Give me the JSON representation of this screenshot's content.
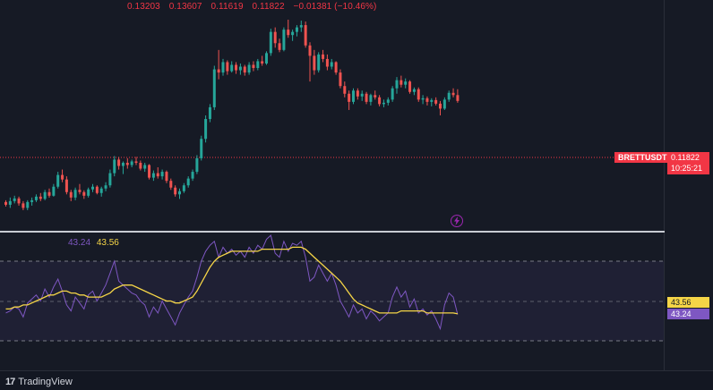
{
  "ohlc": {
    "open": "0.13203",
    "high": "0.13607",
    "low": "0.11619",
    "close": "0.11822",
    "change": "−0.01381 (−10.46%)"
  },
  "rsi_legend": {
    "rsi": "43.24",
    "ma": "43.56"
  },
  "symbol_tag": "BRETTUSDT",
  "last_price": "0.11822",
  "countdown": "10:25:21",
  "rsi_axis": {
    "ma_value": "43.56",
    "rsi_value": "43.24"
  },
  "footer": {
    "logo_mark": "17",
    "logo_text": "TradingView"
  },
  "colors": {
    "up": "#26a69a",
    "down": "#ef5350",
    "rsi": "#7e57c2",
    "rsi_ma": "#f5d547",
    "background": "#161a25",
    "rsi_band": "#1e1f33"
  },
  "icons": {
    "flash": "flash-circle-icon",
    "logo": "tradingview-logo-icon"
  },
  "chart_data": [
    {
      "type": "candlestick",
      "symbol": "BRETTUSDT",
      "last": 0.11822,
      "candles": [
        [
          0.0958,
          0.0962,
          0.0948,
          0.0952
        ],
        [
          0.0952,
          0.0968,
          0.0945,
          0.096
        ],
        [
          0.096,
          0.0972,
          0.0955,
          0.0966
        ],
        [
          0.0966,
          0.097,
          0.095,
          0.0955
        ],
        [
          0.0955,
          0.096,
          0.094,
          0.0945
        ],
        [
          0.0945,
          0.0962,
          0.094,
          0.0958
        ],
        [
          0.0958,
          0.0968,
          0.095,
          0.0962
        ],
        [
          0.0962,
          0.0975,
          0.0958,
          0.097
        ],
        [
          0.097,
          0.0978,
          0.096,
          0.0965
        ],
        [
          0.0965,
          0.0985,
          0.0962,
          0.098
        ],
        [
          0.098,
          0.0988,
          0.0968,
          0.0972
        ],
        [
          0.0972,
          0.0998,
          0.097,
          0.0992
        ],
        [
          0.0992,
          0.1025,
          0.0988,
          0.1018
        ],
        [
          0.1018,
          0.103,
          0.1002,
          0.1008
        ],
        [
          0.1008,
          0.1015,
          0.0975,
          0.098
        ],
        [
          0.098,
          0.0985,
          0.096,
          0.0968
        ],
        [
          0.0968,
          0.099,
          0.0962,
          0.0985
        ],
        [
          0.0985,
          0.0998,
          0.0975,
          0.098
        ],
        [
          0.098,
          0.0984,
          0.0965,
          0.0972
        ],
        [
          0.0972,
          0.099,
          0.0968,
          0.0986
        ],
        [
          0.0986,
          0.0998,
          0.098,
          0.0992
        ],
        [
          0.0992,
          0.0995,
          0.0975,
          0.0978
        ],
        [
          0.0978,
          0.0992,
          0.097,
          0.0988
        ],
        [
          0.0988,
          0.1002,
          0.0982,
          0.0995
        ],
        [
          0.0995,
          0.103,
          0.099,
          0.1022
        ],
        [
          0.1022,
          0.106,
          0.1015,
          0.1052
        ],
        [
          0.1052,
          0.1058,
          0.103,
          0.1038
        ],
        [
          0.1038,
          0.1048,
          0.102,
          0.1045
        ],
        [
          0.1045,
          0.1055,
          0.1032,
          0.104
        ],
        [
          0.104,
          0.1052,
          0.1035,
          0.1048
        ],
        [
          0.1048,
          0.1058,
          0.104,
          0.1045
        ],
        [
          0.1045,
          0.105,
          0.1028,
          0.1032
        ],
        [
          0.1032,
          0.1045,
          0.1025,
          0.104
        ],
        [
          0.104,
          0.1042,
          0.1008,
          0.1012
        ],
        [
          0.1012,
          0.1028,
          0.1005,
          0.1022
        ],
        [
          0.1022,
          0.1035,
          0.101,
          0.1015
        ],
        [
          0.1015,
          0.103,
          0.1008,
          0.1025
        ],
        [
          0.1025,
          0.1028,
          0.1,
          0.1005
        ],
        [
          0.1005,
          0.101,
          0.0985,
          0.099
        ],
        [
          0.099,
          0.0995,
          0.097,
          0.0975
        ],
        [
          0.0975,
          0.0988,
          0.0965,
          0.0982
        ],
        [
          0.0982,
          0.1,
          0.0978,
          0.0995
        ],
        [
          0.0995,
          0.1015,
          0.099,
          0.101
        ],
        [
          0.101,
          0.103,
          0.1005,
          0.1025
        ],
        [
          0.1025,
          0.1062,
          0.102,
          0.1055
        ],
        [
          0.1055,
          0.1105,
          0.105,
          0.1098
        ],
        [
          0.1098,
          0.115,
          0.109,
          0.1142
        ],
        [
          0.1142,
          0.1175,
          0.1135,
          0.1168
        ],
        [
          0.1168,
          0.126,
          0.1162,
          0.1252
        ],
        [
          0.1252,
          0.1295,
          0.123,
          0.1245
        ],
        [
          0.1245,
          0.1275,
          0.1238,
          0.1268
        ],
        [
          0.1268,
          0.1272,
          0.124,
          0.1248
        ],
        [
          0.1248,
          0.127,
          0.1245,
          0.1262
        ],
        [
          0.1262,
          0.1268,
          0.1242,
          0.125
        ],
        [
          0.125,
          0.1265,
          0.124,
          0.1258
        ],
        [
          0.1258,
          0.1262,
          0.1238,
          0.1245
        ],
        [
          0.1245,
          0.1268,
          0.124,
          0.1262
        ],
        [
          0.1262,
          0.127,
          0.1248,
          0.1255
        ],
        [
          0.1255,
          0.1275,
          0.125,
          0.127
        ],
        [
          0.127,
          0.1282,
          0.126,
          0.1265
        ],
        [
          0.1265,
          0.1292,
          0.1262,
          0.1288
        ],
        [
          0.1288,
          0.1342,
          0.1282,
          0.1335
        ],
        [
          0.1335,
          0.1345,
          0.13,
          0.131
        ],
        [
          0.131,
          0.132,
          0.129,
          0.1295
        ],
        [
          0.1295,
          0.1345,
          0.1292,
          0.134
        ],
        [
          0.134,
          0.1362,
          0.1322,
          0.1328
        ],
        [
          0.1328,
          0.134,
          0.1315,
          0.1335
        ],
        [
          0.1335,
          0.135,
          0.1325,
          0.1345
        ],
        [
          0.1345,
          0.136,
          0.1335,
          0.135
        ],
        [
          0.135,
          0.1358,
          0.13,
          0.1305
        ],
        [
          0.1305,
          0.1312,
          0.1225,
          0.1282
        ],
        [
          0.1282,
          0.1295,
          0.124,
          0.125
        ],
        [
          0.125,
          0.129,
          0.1245,
          0.1285
        ],
        [
          0.1285,
          0.1295,
          0.1268,
          0.1275
        ],
        [
          0.1275,
          0.1285,
          0.125,
          0.1258
        ],
        [
          0.1258,
          0.1275,
          0.1252,
          0.1268
        ],
        [
          0.1268,
          0.127,
          0.124,
          0.1245
        ],
        [
          0.1245,
          0.1252,
          0.121,
          0.1215
        ],
        [
          0.1215,
          0.1225,
          0.119,
          0.1198
        ],
        [
          0.1198,
          0.1205,
          0.1162,
          0.118
        ],
        [
          0.118,
          0.121,
          0.1175,
          0.1205
        ],
        [
          0.1205,
          0.121,
          0.1185,
          0.1192
        ],
        [
          0.1192,
          0.1205,
          0.1182,
          0.1198
        ],
        [
          0.1198,
          0.1202,
          0.1175,
          0.118
        ],
        [
          0.118,
          0.1198,
          0.1172,
          0.1195
        ],
        [
          0.1195,
          0.1205,
          0.1185,
          0.119
        ],
        [
          0.119,
          0.1195,
          0.117,
          0.1175
        ],
        [
          0.1175,
          0.1185,
          0.1168,
          0.1178
        ],
        [
          0.1178,
          0.119,
          0.1172,
          0.1185
        ],
        [
          0.1185,
          0.1215,
          0.118,
          0.121
        ],
        [
          0.121,
          0.1235,
          0.1198,
          0.1228
        ],
        [
          0.1228,
          0.1238,
          0.1212,
          0.1218
        ],
        [
          0.1218,
          0.1232,
          0.121,
          0.1225
        ],
        [
          0.1225,
          0.1228,
          0.1198,
          0.1202
        ],
        [
          0.1202,
          0.1212,
          0.1195,
          0.1208
        ],
        [
          0.1208,
          0.1212,
          0.118,
          0.1185
        ],
        [
          0.1185,
          0.1195,
          0.1175,
          0.1188
        ],
        [
          0.1188,
          0.1192,
          0.1172,
          0.118
        ],
        [
          0.118,
          0.1188,
          0.117,
          0.1184
        ],
        [
          0.1184,
          0.119,
          0.1172,
          0.1176
        ],
        [
          0.1176,
          0.1182,
          0.115,
          0.1165
        ],
        [
          0.1165,
          0.119,
          0.1162,
          0.1185
        ],
        [
          0.1185,
          0.1205,
          0.118,
          0.12
        ],
        [
          0.12,
          0.121,
          0.119,
          0.1195
        ],
        [
          0.1195,
          0.1208,
          0.1178,
          0.1182
        ]
      ]
    },
    {
      "type": "line",
      "series": [
        {
          "name": "43.24",
          "values": [
            44,
            45,
            47,
            46,
            42,
            49,
            51,
            53,
            50,
            56,
            52,
            57,
            61,
            55,
            48,
            45,
            52,
            49,
            46,
            53,
            55,
            50,
            54,
            58,
            64,
            70,
            60,
            58,
            56,
            54,
            53,
            50,
            48,
            42,
            47,
            44,
            50,
            46,
            42,
            38,
            44,
            48,
            52,
            55,
            62,
            70,
            75,
            78,
            80,
            72,
            77,
            74,
            76,
            73,
            75,
            72,
            77,
            74,
            78,
            76,
            81,
            83,
            74,
            72,
            80,
            75,
            79,
            78,
            80,
            72,
            60,
            62,
            68,
            64,
            60,
            64,
            58,
            50,
            46,
            42,
            48,
            44,
            46,
            41,
            45,
            43,
            40,
            42,
            44,
            52,
            57,
            52,
            55,
            47,
            51,
            44,
            46,
            43,
            45,
            41,
            36,
            48,
            54,
            52,
            43.24
          ]
        },
        {
          "name": "43.56",
          "values": [
            46,
            46,
            47,
            47,
            48,
            48,
            49,
            50,
            51,
            52,
            53,
            53,
            54,
            55,
            55,
            54,
            54,
            53,
            53,
            52,
            52,
            52,
            52,
            53,
            54,
            56,
            57,
            58,
            58,
            58,
            57,
            56,
            55,
            54,
            53,
            52,
            51,
            50,
            50,
            49,
            49,
            50,
            51,
            52,
            55,
            59,
            63,
            67,
            70,
            72,
            73,
            74,
            75,
            75,
            75,
            75,
            75,
            75,
            75,
            76,
            76,
            76,
            76,
            76,
            76,
            76,
            77,
            77,
            77,
            76,
            74,
            72,
            70,
            68,
            66,
            64,
            62,
            60,
            57,
            54,
            51,
            49,
            48,
            47,
            46,
            45,
            44,
            44,
            44,
            44,
            44,
            45,
            45,
            45,
            45,
            45,
            45,
            44,
            44,
            44,
            44,
            44,
            44,
            44,
            43.56
          ]
        }
      ],
      "ylim": [
        0,
        100
      ]
    }
  ]
}
